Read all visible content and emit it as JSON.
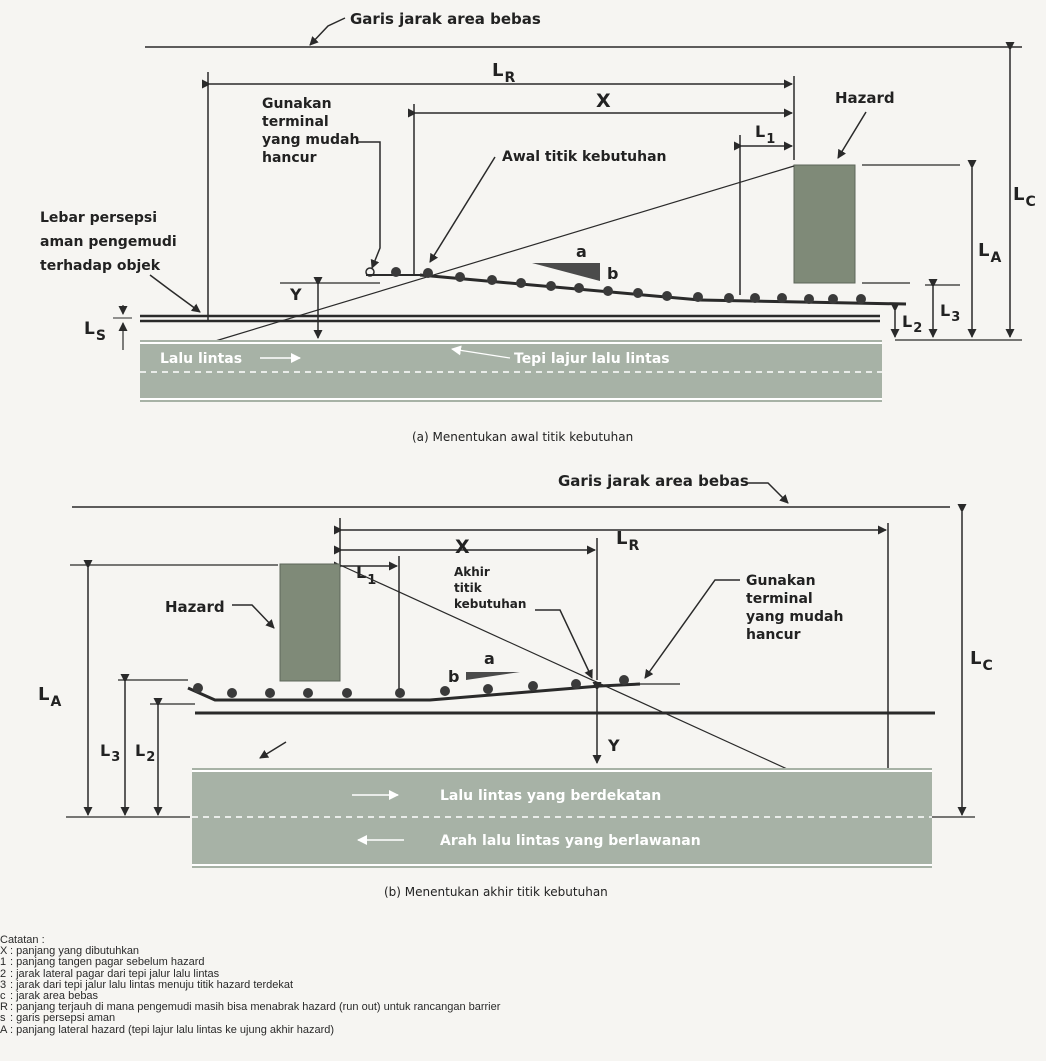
{
  "diagram_a": {
    "top_clear_zone": "Garis jarak area bebas",
    "lr": "L",
    "lr_sub": "R",
    "x": "X",
    "l1": "L",
    "l1_sub": "1",
    "hazard": "Hazard",
    "terminal": [
      "Gunakan",
      "terminal",
      "yang mudah",
      "hancur"
    ],
    "start_need": "Awal titik kebutuhan",
    "perception": [
      "Lebar persepsi",
      "aman pengemudi",
      "terhadap objek"
    ],
    "lc": "L",
    "lc_sub": "C",
    "la": "L",
    "la_sub": "A",
    "l3": "L",
    "l3_sub": "3",
    "l2": "L",
    "l2_sub": "2",
    "ls": "L",
    "ls_sub": "S",
    "y": "Y",
    "a": "a",
    "b": "b",
    "traffic": "Lalu lintas",
    "lane_edge": "Tepi lajur lalu lintas",
    "caption": "(a) Menentukan awal titik kebutuhan"
  },
  "diagram_b": {
    "top_clear_zone": "Garis jarak area bebas",
    "x": "X",
    "lr": "L",
    "lr_sub": "R",
    "l1": "L",
    "l1_sub": "1",
    "hazard": "Hazard",
    "end_need": [
      "Akhir",
      "titik",
      "kebutuhan"
    ],
    "terminal": [
      "Gunakan",
      "terminal",
      "yang mudah",
      "hancur"
    ],
    "lc": "L",
    "lc_sub": "C",
    "la": "L",
    "la_sub": "A",
    "l3": "L",
    "l3_sub": "3",
    "l2": "L",
    "l2_sub": "2",
    "y": "Y",
    "a": "a",
    "b": "b",
    "adjacent": "Lalu lintas yang berdekatan",
    "opposing": "Arah lalu lintas yang berlawanan",
    "caption": "(b) Menentukan akhir titik kebutuhan"
  },
  "notes": {
    "title": "Catatan :",
    "items": [
      {
        "key": "X",
        "text": ": panjang yang dibutuhkan"
      },
      {
        "key": "1",
        "text": ": panjang tangen pagar sebelum hazard"
      },
      {
        "key": "2",
        "text": ": jarak lateral pagar dari tepi jalur lalu lintas"
      },
      {
        "key": "3",
        "text": ": jarak dari tepi jalur lalu lintas menuju titik hazard terdekat"
      },
      {
        "key": "c",
        "text": ": jarak area bebas"
      },
      {
        "key": "R",
        "text": ": panjang terjauh di mana pengemudi masih bisa menabrak hazard (run out) untuk rancangan barrier"
      },
      {
        "key": "s",
        "text": ": garis persepsi aman"
      },
      {
        "key": "A",
        "text": ": panjang lateral hazard (tepi lajur lalu lintas ke ujung akhir hazard)"
      }
    ]
  },
  "colors": {
    "road": "#a7b2a6",
    "hazard": "#7f8a78",
    "line": "#2a2a2a",
    "post": "#3a3a3a"
  }
}
